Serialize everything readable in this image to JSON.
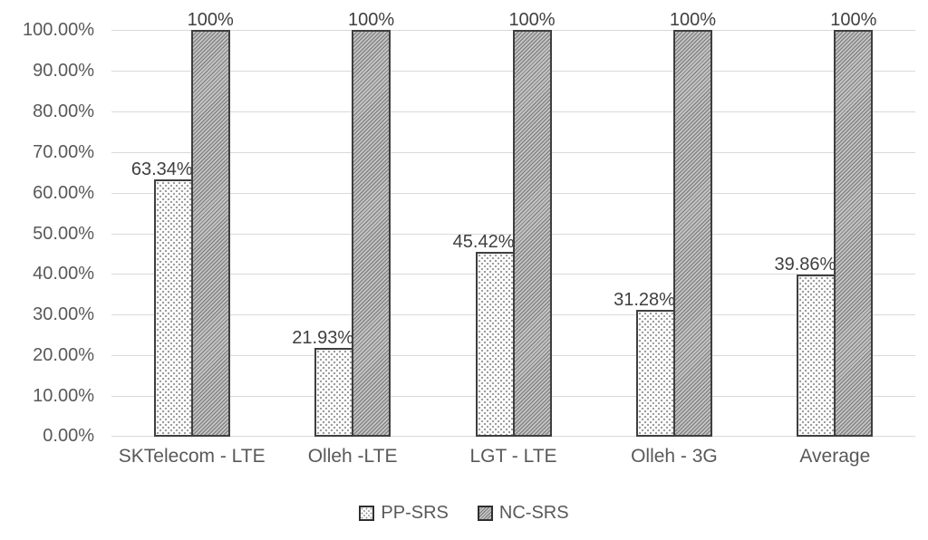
{
  "chart_data": {
    "type": "bar",
    "categories": [
      "SKTelecom - LTE",
      "Olleh -LTE",
      "LGT - LTE",
      "Olleh - 3G",
      "Average"
    ],
    "series": [
      {
        "name": "PP-SRS",
        "pattern": "dots",
        "values": [
          63.34,
          21.93,
          45.42,
          31.28,
          39.86
        ],
        "labels": [
          "63.34%",
          "21.93%",
          "45.42%",
          "31.28%",
          "39.86%"
        ]
      },
      {
        "name": "NC-SRS",
        "pattern": "diagonal-hatch",
        "values": [
          100,
          100,
          100,
          100,
          100
        ],
        "labels": [
          "100%",
          "100%",
          "100%",
          "100%",
          "100%"
        ]
      }
    ],
    "title": "",
    "xlabel": "",
    "ylabel": "",
    "ylim": [
      0,
      100
    ],
    "y_ticks": [
      "0.00%",
      "10.00%",
      "20.00%",
      "30.00%",
      "40.00%",
      "50.00%",
      "60.00%",
      "70.00%",
      "80.00%",
      "90.00%",
      "100.00%"
    ],
    "grid": "horizontal",
    "legend_position": "bottom",
    "colors": {
      "axis_text": "#595959",
      "data_label_text": "#3f3f3f",
      "gridline": "#d9d9d9",
      "bar_border": "#3f3f3f",
      "hatch_fill": "#c2c2c2",
      "hatch_line": "#787878",
      "dot_fill": "#ffffff",
      "dot_color": "#9a9a9a",
      "background": "#ffffff"
    }
  }
}
